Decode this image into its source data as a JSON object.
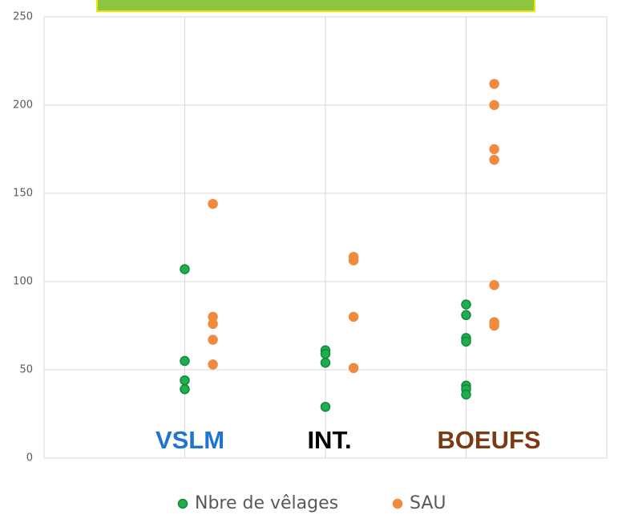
{
  "chart_data": {
    "type": "scatter",
    "xlim": [
      0,
      4
    ],
    "xticks": [
      0,
      1,
      2,
      3,
      4
    ],
    "ylim": [
      0,
      250
    ],
    "yticks": [
      0,
      50,
      100,
      150,
      200,
      250
    ],
    "grid": true,
    "legend": "bottom",
    "series": [
      {
        "name": "Nbre de vêlages",
        "color": "#1fad4f",
        "x": [
          1,
          1,
          1,
          1,
          2,
          2,
          2,
          2,
          3,
          3,
          3,
          3,
          3,
          3,
          3
        ],
        "values": [
          107,
          55,
          44,
          39,
          61,
          59,
          54,
          29,
          87,
          81,
          68,
          66,
          41,
          39,
          36
        ]
      },
      {
        "name": "SAU",
        "color": "#f08a3e",
        "x": [
          1.2,
          1.2,
          1.2,
          1.2,
          1.2,
          2.2,
          2.2,
          2.2,
          2.2,
          3.2,
          3.2,
          3.2,
          3.2,
          3.2,
          3.2,
          3.2
        ],
        "values": [
          144,
          80,
          76,
          67,
          53,
          114,
          112,
          80,
          51,
          212,
          200,
          175,
          169,
          98,
          77,
          75
        ]
      }
    ],
    "annotations": [
      {
        "text": "VSLM",
        "color": "#1f74d2"
      },
      {
        "text": "INT.",
        "color": "#000000"
      },
      {
        "text": "BOEUFS",
        "color": "#7b3a12"
      }
    ]
  }
}
